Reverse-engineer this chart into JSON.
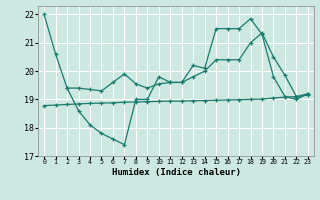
{
  "xlabel": "Humidex (Indice chaleur)",
  "background_color": "#cce8e0",
  "grid_color": "#ffffff",
  "line_color": "#1a7a6e",
  "xlim": [
    -0.5,
    23.5
  ],
  "ylim": [
    17,
    22.3
  ],
  "yticks": [
    17,
    18,
    19,
    20,
    21,
    22
  ],
  "xtick_labels": [
    "0",
    "1",
    "2",
    "3",
    "4",
    "5",
    "6",
    "7",
    "8",
    "9",
    "10",
    "11",
    "12",
    "13",
    "14",
    "15",
    "16",
    "17",
    "18",
    "19",
    "20",
    "21",
    "22",
    "23"
  ],
  "line1_x": [
    0,
    1,
    2,
    3,
    4,
    5,
    6,
    7,
    8,
    9,
    10,
    11,
    12,
    13,
    14,
    15,
    16,
    17,
    18,
    19,
    20,
    21,
    22,
    23
  ],
  "line1_y": [
    22.0,
    20.6,
    19.4,
    18.6,
    18.1,
    17.8,
    17.6,
    17.4,
    19.0,
    19.0,
    19.8,
    19.6,
    19.6,
    20.2,
    20.1,
    21.5,
    21.5,
    21.5,
    21.85,
    21.3,
    19.8,
    19.1,
    19.0,
    19.2
  ],
  "line2_x": [
    2,
    3,
    4,
    5,
    6,
    7,
    8,
    9,
    10,
    11,
    12,
    13,
    14,
    15,
    16,
    17,
    18,
    19,
    20,
    21,
    22,
    23
  ],
  "line2_y": [
    19.4,
    19.4,
    19.35,
    19.3,
    19.6,
    19.9,
    19.55,
    19.4,
    19.55,
    19.6,
    19.6,
    19.8,
    20.0,
    20.4,
    20.4,
    20.4,
    21.0,
    21.35,
    20.5,
    19.85,
    19.1,
    19.2
  ],
  "line3_x": [
    0,
    1,
    2,
    3,
    4,
    5,
    6,
    7,
    8,
    9,
    10,
    11,
    12,
    13,
    14,
    15,
    16,
    17,
    18,
    19,
    20,
    21,
    22,
    23
  ],
  "line3_y": [
    18.78,
    18.8,
    18.82,
    18.84,
    18.86,
    18.87,
    18.88,
    18.9,
    18.91,
    18.92,
    18.93,
    18.94,
    18.94,
    18.95,
    18.96,
    18.97,
    18.98,
    18.99,
    19.0,
    19.01,
    19.05,
    19.08,
    19.1,
    19.15
  ]
}
